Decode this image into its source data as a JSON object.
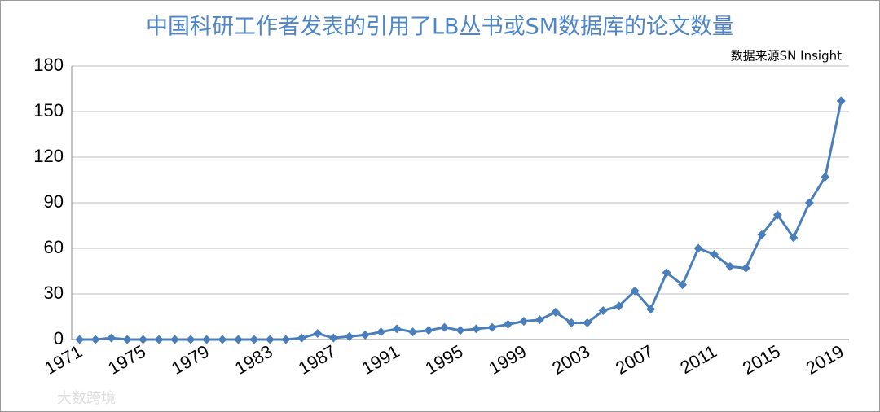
{
  "chart_data": {
    "type": "line",
    "title": "中国科研工作者发表的引用了LB丛书或SM数据库的论文数量",
    "source": "数据来源SN Insight",
    "watermark": "大数跨境",
    "categories": [
      "1971",
      null,
      null,
      null,
      "1975",
      null,
      null,
      null,
      "1979",
      null,
      null,
      null,
      "1983",
      null,
      null,
      null,
      "1987",
      null,
      null,
      null,
      "1991",
      null,
      null,
      null,
      "1995",
      null,
      null,
      null,
      "1999",
      null,
      null,
      null,
      "2003",
      null,
      null,
      null,
      "2007",
      null,
      null,
      null,
      "2011",
      null,
      null,
      null,
      "2015",
      null,
      null,
      null,
      "2019"
    ],
    "series": [
      {
        "name": "论文数量",
        "color": "#4a7ebb",
        "values": [
          0,
          0,
          1,
          0,
          0,
          0,
          0,
          0,
          0,
          0,
          0,
          0,
          0,
          0,
          1,
          4,
          1,
          2,
          3,
          5,
          7,
          5,
          6,
          8,
          6,
          7,
          8,
          10,
          12,
          13,
          18,
          11,
          11,
          19,
          22,
          32,
          20,
          44,
          36,
          60,
          56,
          48,
          47,
          69,
          82,
          67,
          90,
          107,
          157
        ]
      }
    ],
    "ylim": [
      0,
      180
    ],
    "yticks": [
      0,
      30,
      60,
      90,
      120,
      150,
      180
    ],
    "grid": true
  }
}
